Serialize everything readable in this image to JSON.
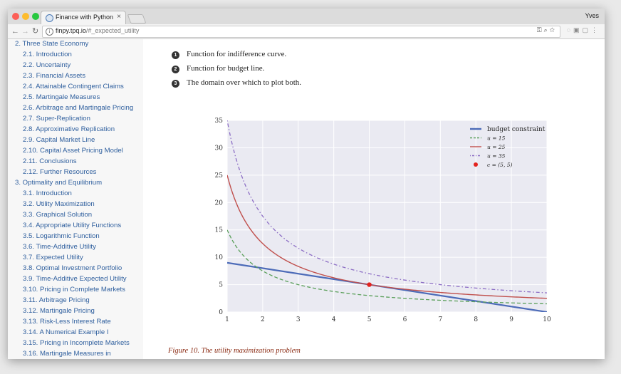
{
  "browser": {
    "tab_title": "Finance with Python",
    "user": "Yves",
    "url_host": "finpy.tpq.io",
    "url_path": "/#_expected_utility"
  },
  "sidebar": {
    "items": [
      {
        "label": "2. Three State Economy",
        "level": 1
      },
      {
        "label": "2.1. Introduction",
        "level": 2
      },
      {
        "label": "2.2. Uncertainty",
        "level": 2
      },
      {
        "label": "2.3. Financial Assets",
        "level": 2
      },
      {
        "label": "2.4. Attainable Contingent Claims",
        "level": 2
      },
      {
        "label": "2.5. Martingale Measures",
        "level": 2
      },
      {
        "label": "2.6. Arbitrage and Martingale Pricing",
        "level": 2
      },
      {
        "label": "2.7. Super-Replication",
        "level": 2
      },
      {
        "label": "2.8. Approximative Replication",
        "level": 2
      },
      {
        "label": "2.9. Capital Market Line",
        "level": 2
      },
      {
        "label": "2.10. Capital Asset Pricing Model",
        "level": 2
      },
      {
        "label": "2.11. Conclusions",
        "level": 2
      },
      {
        "label": "2.12. Further Resources",
        "level": 2
      },
      {
        "label": "3. Optimality and Equilibrium",
        "level": 1
      },
      {
        "label": "3.1. Introduction",
        "level": 2
      },
      {
        "label": "3.2. Utility Maximization",
        "level": 2
      },
      {
        "label": "3.3. Graphical Solution",
        "level": 2
      },
      {
        "label": "3.4. Appropriate Utility Functions",
        "level": 2
      },
      {
        "label": "3.5. Logarithmic Function",
        "level": 2
      },
      {
        "label": "3.6. Time-Additive Utility",
        "level": 2
      },
      {
        "label": "3.7. Expected Utility",
        "level": 2
      },
      {
        "label": "3.8. Optimal Investment Portfolio",
        "level": 2
      },
      {
        "label": "3.9. Time-Additive Expected Utility",
        "level": 2
      },
      {
        "label": "3.10. Pricing in Complete Markets",
        "level": 2
      },
      {
        "label": "3.11. Arbitrage Pricing",
        "level": 2
      },
      {
        "label": "3.12. Martingale Pricing",
        "level": 2
      },
      {
        "label": "3.13. Risk-Less Interest Rate",
        "level": 2
      },
      {
        "label": "3.14. A Numerical Example I",
        "level": 2
      },
      {
        "label": "3.15. Pricing in Incomplete Markets",
        "level": 2
      },
      {
        "label": "3.16. Martingale Measures in",
        "level": 2
      }
    ]
  },
  "content": {
    "notes": [
      {
        "number": "1",
        "text": "Function for indifference curve."
      },
      {
        "number": "2",
        "text": "Function for budget line."
      },
      {
        "number": "3",
        "text": "The domain over which to plot both."
      }
    ],
    "caption": "Figure 10. The utility maximization problem"
  },
  "chart_data": {
    "type": "line",
    "xlim": [
      1,
      10
    ],
    "ylim": [
      0,
      35
    ],
    "x_ticks": [
      1,
      2,
      3,
      4,
      5,
      6,
      7,
      8,
      9,
      10
    ],
    "y_ticks": [
      0,
      5,
      10,
      15,
      20,
      25,
      30,
      35
    ],
    "grid": true,
    "legend_position": "top-right",
    "series": [
      {
        "name": "budget constraint",
        "kind": "line",
        "color": "#4c6bb8",
        "x": [
          1,
          10
        ],
        "y": [
          9,
          0
        ]
      },
      {
        "name": "u = 15",
        "kind": "dashed",
        "color": "#5ba05b",
        "x": [
          1,
          1.5,
          2,
          3,
          4,
          5,
          6,
          7,
          8,
          9,
          10
        ],
        "y": [
          15,
          10,
          7.5,
          5,
          3.75,
          3,
          2.5,
          2.14,
          1.88,
          1.67,
          1.5
        ]
      },
      {
        "name": "u = 25",
        "kind": "line",
        "color": "#c0504d",
        "x": [
          1,
          1.5,
          2,
          3,
          4,
          5,
          6,
          7,
          8,
          9,
          10
        ],
        "y": [
          25,
          16.67,
          12.5,
          8.33,
          6.25,
          5,
          4.17,
          3.57,
          3.13,
          2.78,
          2.5
        ]
      },
      {
        "name": "u = 35",
        "kind": "dashdot",
        "color": "#8b6cc4",
        "x": [
          1,
          1.5,
          2,
          3,
          4,
          5,
          6,
          7,
          8,
          9,
          10
        ],
        "y": [
          35,
          23.33,
          17.5,
          11.67,
          8.75,
          7,
          5.83,
          5,
          4.38,
          3.89,
          3.5
        ]
      }
    ],
    "points": [
      {
        "name": "c = (5, 5)",
        "x": 5,
        "y": 5,
        "color": "#e3231f"
      }
    ]
  }
}
